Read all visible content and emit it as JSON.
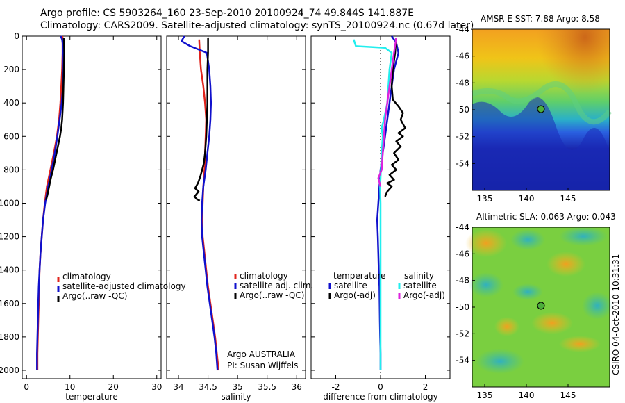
{
  "title_line1": "Argo profile: CS 5903264_160 23-Sep-2010 20100924_74 49.844S 141.887E",
  "title_line2": "Climatology: CARS2009. Satellite-adjusted climatology: synTS_20100924.nc (0.67d later)",
  "panel1": {
    "xlabel": "temperature",
    "legend": [
      "climatology",
      "satellite-adjusted climatology",
      "Argo(..raw -QC)"
    ]
  },
  "panel2": {
    "xlabel": "salinity",
    "legend": [
      "climatology",
      "satellite adj. clim.",
      "Argo(..raw -QC)"
    ],
    "note1": "Argo AUSTRALIA",
    "note2": "PI: Susan Wijffels"
  },
  "panel3": {
    "xlabel": "difference from climatology",
    "legend_left_head": "temperature",
    "legend_right_head": "salinity",
    "legend_left": [
      "satellite",
      "Argo(-adj)"
    ],
    "legend_right": [
      "satellite",
      "Argo(-adj)"
    ]
  },
  "map1": {
    "title": "AMSR-E SST: 7.88 Argo: 8.58"
  },
  "map2": {
    "title": "Altimetric SLA: 0.063 Argo: 0.043"
  },
  "side_label": "CSIRO 04-Oct-2010 10:31:31",
  "colors": {
    "climatology": "#e0241c",
    "satellite": "#1010cc",
    "argo": "#000000",
    "sat_salinity": "#22eeee",
    "argo_salinity": "#dd22dd"
  },
  "chart_data": [
    {
      "type": "line",
      "xlabel": "temperature",
      "ylabel": "",
      "xlim": [
        -1,
        31
      ],
      "ylim": [
        2050,
        0
      ],
      "xticks": [
        0,
        10,
        20,
        30
      ],
      "yticks": [
        0,
        200,
        400,
        600,
        800,
        1000,
        1200,
        1400,
        1600,
        1800,
        2000
      ],
      "series": [
        {
          "name": "climatology",
          "points": [
            [
              8.3,
              0
            ],
            [
              8.3,
              100
            ],
            [
              8.2,
              200
            ],
            [
              8.0,
              300
            ],
            [
              7.8,
              400
            ],
            [
              7.5,
              500
            ],
            [
              7.0,
              600
            ],
            [
              6.3,
              700
            ],
            [
              5.5,
              800
            ],
            [
              4.7,
              900
            ],
            [
              4.2,
              1000
            ],
            [
              3.8,
              1100
            ],
            [
              3.5,
              1200
            ],
            [
              3.2,
              1300
            ],
            [
              3.0,
              1400
            ],
            [
              2.9,
              1500
            ],
            [
              2.8,
              1600
            ],
            [
              2.7,
              1700
            ],
            [
              2.6,
              1800
            ],
            [
              2.5,
              1900
            ],
            [
              2.5,
              2000
            ]
          ]
        },
        {
          "name": "satellite-adjusted climatology",
          "points": [
            [
              7.9,
              0
            ],
            [
              8.2,
              20
            ],
            [
              8.4,
              60
            ],
            [
              8.5,
              120
            ],
            [
              8.5,
              200
            ],
            [
              8.4,
              300
            ],
            [
              8.1,
              400
            ],
            [
              7.6,
              500
            ],
            [
              7.1,
              600
            ],
            [
              6.5,
              700
            ],
            [
              5.8,
              800
            ],
            [
              5.0,
              900
            ],
            [
              4.3,
              1000
            ],
            [
              3.8,
              1100
            ],
            [
              3.5,
              1200
            ],
            [
              3.2,
              1300
            ],
            [
              3.0,
              1400
            ],
            [
              2.8,
              1500
            ],
            [
              2.7,
              1600
            ],
            [
              2.6,
              1700
            ],
            [
              2.5,
              1800
            ],
            [
              2.4,
              1900
            ],
            [
              2.4,
              2000
            ]
          ]
        },
        {
          "name": "Argo(..raw -QC)",
          "points": [
            [
              8.6,
              10
            ],
            [
              8.7,
              100
            ],
            [
              8.6,
              200
            ],
            [
              8.5,
              300
            ],
            [
              8.4,
              400
            ],
            [
              8.2,
              500
            ],
            [
              8.0,
              550
            ],
            [
              7.7,
              600
            ],
            [
              7.3,
              650
            ],
            [
              6.9,
              700
            ],
            [
              6.5,
              750
            ],
            [
              6.1,
              800
            ],
            [
              5.6,
              850
            ],
            [
              5.2,
              900
            ],
            [
              4.8,
              950
            ],
            [
              4.5,
              980
            ]
          ]
        }
      ]
    },
    {
      "type": "line",
      "xlabel": "salinity",
      "ylabel": "",
      "xlim": [
        33.8,
        36.15
      ],
      "ylim": [
        2050,
        0
      ],
      "xticks": [
        34,
        34.5,
        35,
        35.5,
        36
      ],
      "series": [
        {
          "name": "climatology",
          "points": [
            [
              34.35,
              20
            ],
            [
              34.36,
              100
            ],
            [
              34.38,
              200
            ],
            [
              34.42,
              300
            ],
            [
              34.45,
              400
            ],
            [
              34.47,
              500
            ],
            [
              34.46,
              600
            ],
            [
              34.45,
              700
            ],
            [
              34.44,
              800
            ],
            [
              34.42,
              900
            ],
            [
              34.41,
              1000
            ],
            [
              34.4,
              1100
            ],
            [
              34.41,
              1200
            ],
            [
              34.44,
              1300
            ],
            [
              34.47,
              1400
            ],
            [
              34.5,
              1500
            ],
            [
              34.54,
              1600
            ],
            [
              34.58,
              1700
            ],
            [
              34.62,
              1800
            ],
            [
              34.65,
              1900
            ],
            [
              34.68,
              2000
            ]
          ]
        },
        {
          "name": "satellite adj. clim.",
          "points": [
            [
              34.1,
              0
            ],
            [
              34.05,
              30
            ],
            [
              34.2,
              60
            ],
            [
              34.48,
              100
            ],
            [
              34.52,
              200
            ],
            [
              34.54,
              300
            ],
            [
              34.55,
              400
            ],
            [
              34.54,
              500
            ],
            [
              34.52,
              600
            ],
            [
              34.49,
              700
            ],
            [
              34.46,
              800
            ],
            [
              34.42,
              900
            ],
            [
              34.4,
              1000
            ],
            [
              34.39,
              1100
            ],
            [
              34.4,
              1200
            ],
            [
              34.43,
              1300
            ],
            [
              34.46,
              1400
            ],
            [
              34.49,
              1500
            ],
            [
              34.53,
              1600
            ],
            [
              34.57,
              1700
            ],
            [
              34.61,
              1800
            ],
            [
              34.64,
              1900
            ],
            [
              34.66,
              2000
            ]
          ]
        },
        {
          "name": "Argo(..raw -QC)",
          "points": [
            [
              34.5,
              10
            ],
            [
              34.5,
              100
            ],
            [
              34.49,
              200
            ],
            [
              34.49,
              300
            ],
            [
              34.49,
              400
            ],
            [
              34.48,
              500
            ],
            [
              34.47,
              600
            ],
            [
              34.45,
              700
            ],
            [
              34.43,
              760
            ],
            [
              34.4,
              800
            ],
            [
              34.37,
              840
            ],
            [
              34.33,
              880
            ],
            [
              34.28,
              910
            ],
            [
              34.34,
              930
            ],
            [
              34.27,
              960
            ],
            [
              34.31,
              975
            ],
            [
              34.36,
              985
            ]
          ]
        }
      ]
    },
    {
      "type": "line",
      "xlabel": "difference from climatology",
      "ylabel": "",
      "xlim": [
        -3.1,
        3.1
      ],
      "ylim": [
        2050,
        0
      ],
      "xticks": [
        -2,
        0,
        2
      ],
      "series": [
        {
          "name": "satellite",
          "points": [
            [
              0.5,
              0
            ],
            [
              0.7,
              40
            ],
            [
              0.8,
              100
            ],
            [
              0.6,
              200
            ],
            [
              0.5,
              300
            ],
            [
              0.4,
              400
            ],
            [
              0.3,
              500
            ],
            [
              0.2,
              600
            ],
            [
              0.1,
              700
            ],
            [
              0.0,
              800
            ],
            [
              -0.05,
              900
            ],
            [
              -0.1,
              1000
            ],
            [
              -0.15,
              1100
            ],
            [
              -0.12,
              1200
            ],
            [
              -0.1,
              1300
            ],
            [
              -0.08,
              1400
            ],
            [
              -0.05,
              1500
            ],
            [
              -0.04,
              1600
            ],
            [
              -0.03,
              1700
            ],
            [
              -0.02,
              1800
            ],
            [
              0.0,
              1900
            ],
            [
              0.0,
              2000
            ]
          ]
        },
        {
          "name": "Argo(-adj)",
          "points": [
            [
              0.7,
              10
            ],
            [
              0.65,
              100
            ],
            [
              0.55,
              200
            ],
            [
              0.5,
              300
            ],
            [
              0.55,
              380
            ],
            [
              0.8,
              420
            ],
            [
              1.0,
              460
            ],
            [
              0.9,
              500
            ],
            [
              1.1,
              550
            ],
            [
              0.8,
              580
            ],
            [
              1.0,
              600
            ],
            [
              0.7,
              630
            ],
            [
              0.9,
              660
            ],
            [
              0.6,
              700
            ],
            [
              0.8,
              740
            ],
            [
              0.5,
              770
            ],
            [
              0.7,
              800
            ],
            [
              0.4,
              830
            ],
            [
              0.6,
              860
            ],
            [
              0.3,
              880
            ],
            [
              0.5,
              900
            ],
            [
              0.3,
              930
            ],
            [
              0.2,
              960
            ]
          ]
        },
        {
          "name": "sal-satellite",
          "points": [
            [
              -1.2,
              20
            ],
            [
              -1.1,
              60
            ],
            [
              0.2,
              70
            ],
            [
              0.5,
              100
            ],
            [
              0.4,
              200
            ],
            [
              0.35,
              300
            ],
            [
              0.3,
              400
            ],
            [
              0.15,
              500
            ],
            [
              0.05,
              550
            ],
            [
              0.1,
              600
            ],
            [
              0.05,
              700
            ],
            [
              0.02,
              800
            ],
            [
              -0.02,
              900
            ],
            [
              0.0,
              1000
            ],
            [
              0.0,
              1200
            ],
            [
              0.0,
              1400
            ],
            [
              0.0,
              1600
            ],
            [
              0.0,
              1800
            ],
            [
              0.0,
              2000
            ]
          ]
        },
        {
          "name": "sal-Argo(-adj)",
          "points": [
            [
              0.7,
              10
            ],
            [
              0.6,
              100
            ],
            [
              0.5,
              200
            ],
            [
              0.4,
              300
            ],
            [
              0.3,
              400
            ],
            [
              0.2,
              500
            ],
            [
              0.15,
              600
            ],
            [
              0.1,
              700
            ],
            [
              0.05,
              800
            ],
            [
              -0.1,
              850
            ],
            [
              0.0,
              900
            ]
          ]
        }
      ]
    }
  ],
  "map_axes": {
    "xticks": [
      135,
      140,
      145
    ],
    "yticks": [
      -44,
      -46,
      -48,
      -50,
      -52,
      -54
    ]
  }
}
